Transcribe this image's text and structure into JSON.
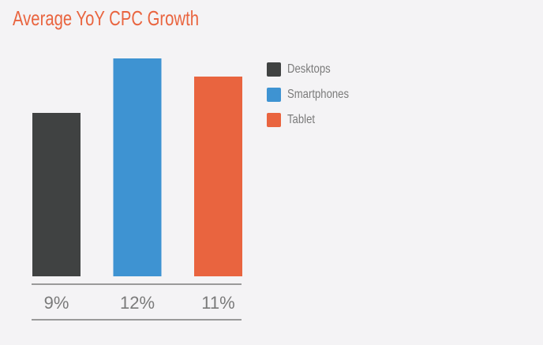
{
  "chart_data": {
    "type": "bar",
    "title": "Average YoY CPC Growth",
    "categories": [
      "Desktops",
      "Smartphones",
      "Tablet"
    ],
    "values": [
      9,
      12,
      11
    ],
    "value_labels": [
      "9%",
      "12%",
      "11%"
    ],
    "colors": [
      "#404242",
      "#3e93d2",
      "#e9643f"
    ],
    "ylim": [
      0,
      13
    ],
    "legend_placement": "right",
    "grid": false
  }
}
